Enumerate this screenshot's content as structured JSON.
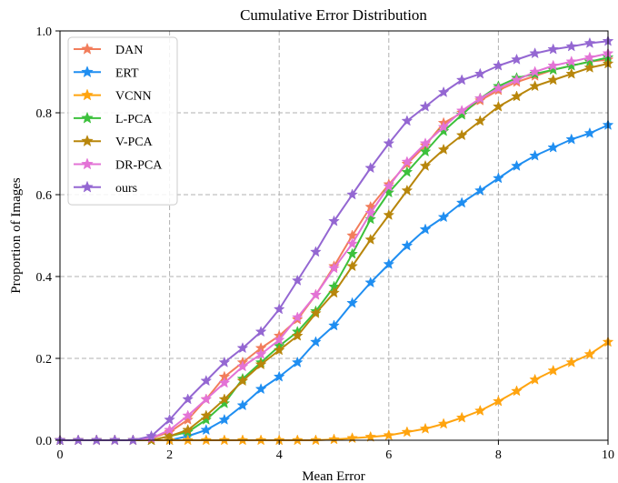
{
  "chart_data": {
    "type": "line",
    "title": "Cumulative Error Distribution",
    "xlabel": "Mean Error",
    "ylabel": "Proportion of Images",
    "xlim": [
      0,
      10
    ],
    "ylim": [
      0,
      1
    ],
    "xticks": [
      0,
      2,
      4,
      6,
      8,
      10
    ],
    "yticks": [
      0.0,
      0.2,
      0.4,
      0.6,
      0.8,
      1.0
    ],
    "xtick_labels": [
      "0",
      "2",
      "4",
      "6",
      "8",
      "10"
    ],
    "ytick_labels": [
      "0.0",
      "0.2",
      "0.4",
      "0.6",
      "0.8",
      "1.0"
    ],
    "grid": true,
    "legend_position": "top-left",
    "marker": "star",
    "x": [
      0,
      0.333,
      0.667,
      1.0,
      1.333,
      1.667,
      2.0,
      2.333,
      2.667,
      3.0,
      3.333,
      3.667,
      4.0,
      4.333,
      4.667,
      5.0,
      5.333,
      5.667,
      6.0,
      6.333,
      6.667,
      7.0,
      7.333,
      7.667,
      8.0,
      8.333,
      8.667,
      9.0,
      9.333,
      9.667,
      10.0
    ],
    "series": [
      {
        "name": "DAN",
        "color": "#f27d5b",
        "values": [
          0,
          0,
          0,
          0,
          0,
          0.005,
          0.02,
          0.05,
          0.1,
          0.155,
          0.19,
          0.225,
          0.255,
          0.295,
          0.355,
          0.425,
          0.5,
          0.57,
          0.625,
          0.675,
          0.72,
          0.775,
          0.8,
          0.83,
          0.855,
          0.875,
          0.89,
          0.905,
          0.915,
          0.925,
          0.93
        ]
      },
      {
        "name": "ERT",
        "color": "#1f8ef1",
        "values": [
          0,
          0,
          0,
          0,
          0,
          0,
          0,
          0.01,
          0.025,
          0.05,
          0.085,
          0.125,
          0.155,
          0.19,
          0.24,
          0.28,
          0.335,
          0.385,
          0.43,
          0.475,
          0.515,
          0.545,
          0.58,
          0.61,
          0.64,
          0.67,
          0.695,
          0.715,
          0.735,
          0.75,
          0.77
        ]
      },
      {
        "name": "VCNN",
        "color": "#ffa40f",
        "values": [
          0,
          0,
          0,
          0,
          0,
          0,
          0,
          0,
          0,
          0,
          0,
          0,
          0,
          0,
          0,
          0.002,
          0.005,
          0.008,
          0.012,
          0.02,
          0.028,
          0.04,
          0.055,
          0.072,
          0.095,
          0.12,
          0.148,
          0.17,
          0.19,
          0.21,
          0.24
        ]
      },
      {
        "name": "L-PCA",
        "color": "#3cc13c",
        "values": [
          0,
          0,
          0,
          0,
          0,
          0,
          0.01,
          0.02,
          0.05,
          0.09,
          0.15,
          0.19,
          0.23,
          0.265,
          0.315,
          0.375,
          0.455,
          0.54,
          0.605,
          0.655,
          0.705,
          0.755,
          0.795,
          0.835,
          0.865,
          0.885,
          0.895,
          0.905,
          0.915,
          0.925,
          0.935
        ]
      },
      {
        "name": "V-PCA",
        "color": "#b8860b",
        "values": [
          0,
          0,
          0,
          0,
          0,
          0,
          0.01,
          0.025,
          0.06,
          0.1,
          0.145,
          0.185,
          0.22,
          0.255,
          0.31,
          0.36,
          0.425,
          0.49,
          0.55,
          0.61,
          0.67,
          0.71,
          0.745,
          0.78,
          0.815,
          0.84,
          0.865,
          0.88,
          0.895,
          0.91,
          0.92
        ]
      },
      {
        "name": "DR-PCA",
        "color": "#e373d6",
        "values": [
          0,
          0,
          0,
          0,
          0,
          0.005,
          0.025,
          0.06,
          0.1,
          0.14,
          0.18,
          0.21,
          0.245,
          0.3,
          0.355,
          0.42,
          0.48,
          0.555,
          0.62,
          0.68,
          0.725,
          0.765,
          0.805,
          0.835,
          0.86,
          0.88,
          0.9,
          0.915,
          0.925,
          0.935,
          0.945
        ]
      },
      {
        "name": "ours",
        "color": "#9467d2",
        "values": [
          0,
          0,
          0,
          0,
          0,
          0.01,
          0.05,
          0.1,
          0.145,
          0.19,
          0.225,
          0.265,
          0.32,
          0.39,
          0.46,
          0.535,
          0.6,
          0.665,
          0.725,
          0.78,
          0.815,
          0.85,
          0.88,
          0.895,
          0.915,
          0.93,
          0.945,
          0.955,
          0.962,
          0.97,
          0.975
        ]
      }
    ]
  }
}
